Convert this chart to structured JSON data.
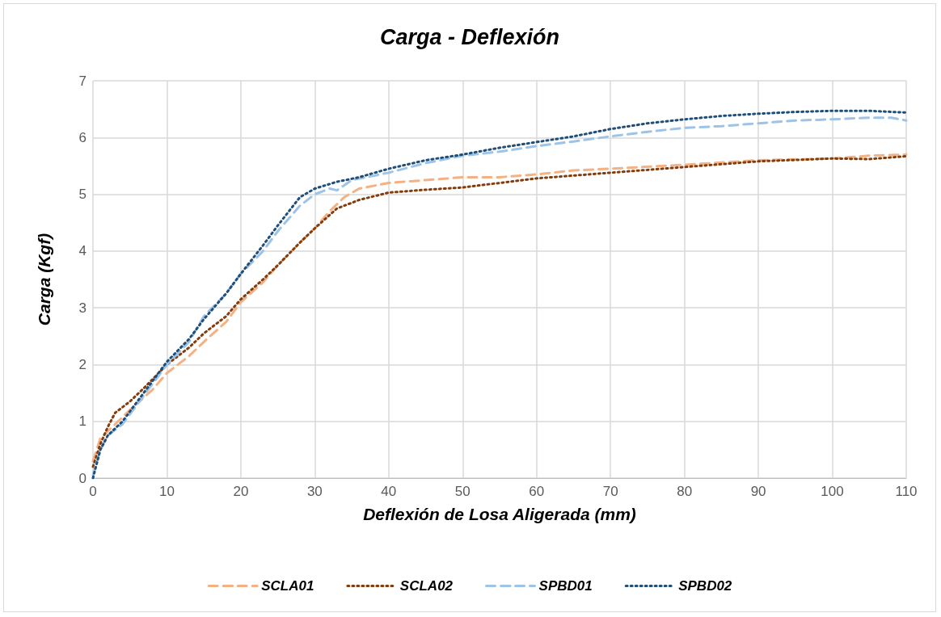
{
  "chart_data": {
    "type": "line",
    "title": "Carga - Deflexión",
    "xlabel": "Deflexión de Losa Aligerada (mm)",
    "ylabel": "Carga (Kgf)",
    "xlim": [
      0,
      110
    ],
    "xticks": [
      0,
      10,
      20,
      30,
      40,
      50,
      60,
      70,
      80,
      90,
      100,
      110
    ],
    "ylim": [
      0,
      7
    ],
    "yticks": [
      0,
      1,
      2,
      3,
      4,
      5,
      6,
      7
    ],
    "grid": true,
    "legend": "bottom",
    "marker": "none",
    "series": [
      {
        "name": "SCLA01",
        "color": "#f4b183",
        "line_style": "dashed",
        "x": [
          0,
          1,
          3,
          5,
          8,
          10,
          13,
          15,
          18,
          20,
          23,
          25,
          28,
          30,
          32,
          34,
          36,
          40,
          45,
          50,
          55,
          60,
          65,
          70,
          80,
          90,
          100,
          105,
          110
        ],
        "values": [
          0.3,
          0.7,
          0.95,
          1.2,
          1.55,
          1.85,
          2.15,
          2.4,
          2.75,
          3.1,
          3.45,
          3.75,
          4.15,
          4.4,
          4.7,
          4.95,
          5.1,
          5.2,
          5.25,
          5.3,
          5.3,
          5.35,
          5.42,
          5.45,
          5.52,
          5.6,
          5.63,
          5.68,
          5.7
        ]
      },
      {
        "name": "SCLA02",
        "color": "#843c0c",
        "line_style": "dotted",
        "x": [
          0,
          1,
          2,
          3,
          5,
          7,
          10,
          13,
          15,
          18,
          20,
          23,
          25,
          28,
          30,
          33,
          36,
          40,
          45,
          50,
          55,
          60,
          70,
          80,
          90,
          100,
          105,
          110
        ],
        "values": [
          0.2,
          0.6,
          0.9,
          1.15,
          1.35,
          1.6,
          2.0,
          2.3,
          2.55,
          2.85,
          3.15,
          3.5,
          3.75,
          4.15,
          4.4,
          4.75,
          4.9,
          5.03,
          5.08,
          5.12,
          5.2,
          5.28,
          5.38,
          5.48,
          5.58,
          5.63,
          5.62,
          5.67
        ]
      },
      {
        "name": "SPBD01",
        "color": "#9dc3e6",
        "line_style": "dashed",
        "x": [
          0,
          1,
          2,
          4,
          6,
          8,
          10,
          13,
          15,
          18,
          20,
          23,
          25,
          28,
          30,
          32,
          33,
          35,
          40,
          45,
          50,
          55,
          60,
          65,
          70,
          75,
          80,
          85,
          90,
          95,
          100,
          105,
          108,
          110
        ],
        "values": [
          0.05,
          0.5,
          0.75,
          0.95,
          1.3,
          1.65,
          2.0,
          2.4,
          2.85,
          3.25,
          3.6,
          4.0,
          4.35,
          4.8,
          5.0,
          5.1,
          5.07,
          5.25,
          5.38,
          5.55,
          5.68,
          5.75,
          5.85,
          5.93,
          6.02,
          6.1,
          6.17,
          6.2,
          6.25,
          6.3,
          6.32,
          6.35,
          6.35,
          6.3
        ]
      },
      {
        "name": "SPBD02",
        "color": "#1f4e79",
        "line_style": "dotted",
        "x": [
          0,
          1,
          2,
          4,
          6,
          8,
          10,
          13,
          15,
          18,
          20,
          23,
          25,
          28,
          30,
          33,
          36,
          40,
          45,
          50,
          55,
          60,
          65,
          70,
          75,
          80,
          85,
          90,
          95,
          100,
          105,
          110
        ],
        "values": [
          0,
          0.5,
          0.75,
          1.0,
          1.35,
          1.7,
          2.05,
          2.45,
          2.8,
          3.25,
          3.6,
          4.1,
          4.45,
          4.95,
          5.1,
          5.22,
          5.3,
          5.45,
          5.6,
          5.7,
          5.82,
          5.92,
          6.02,
          6.15,
          6.25,
          6.32,
          6.38,
          6.42,
          6.45,
          6.47,
          6.47,
          6.44
        ]
      }
    ]
  }
}
